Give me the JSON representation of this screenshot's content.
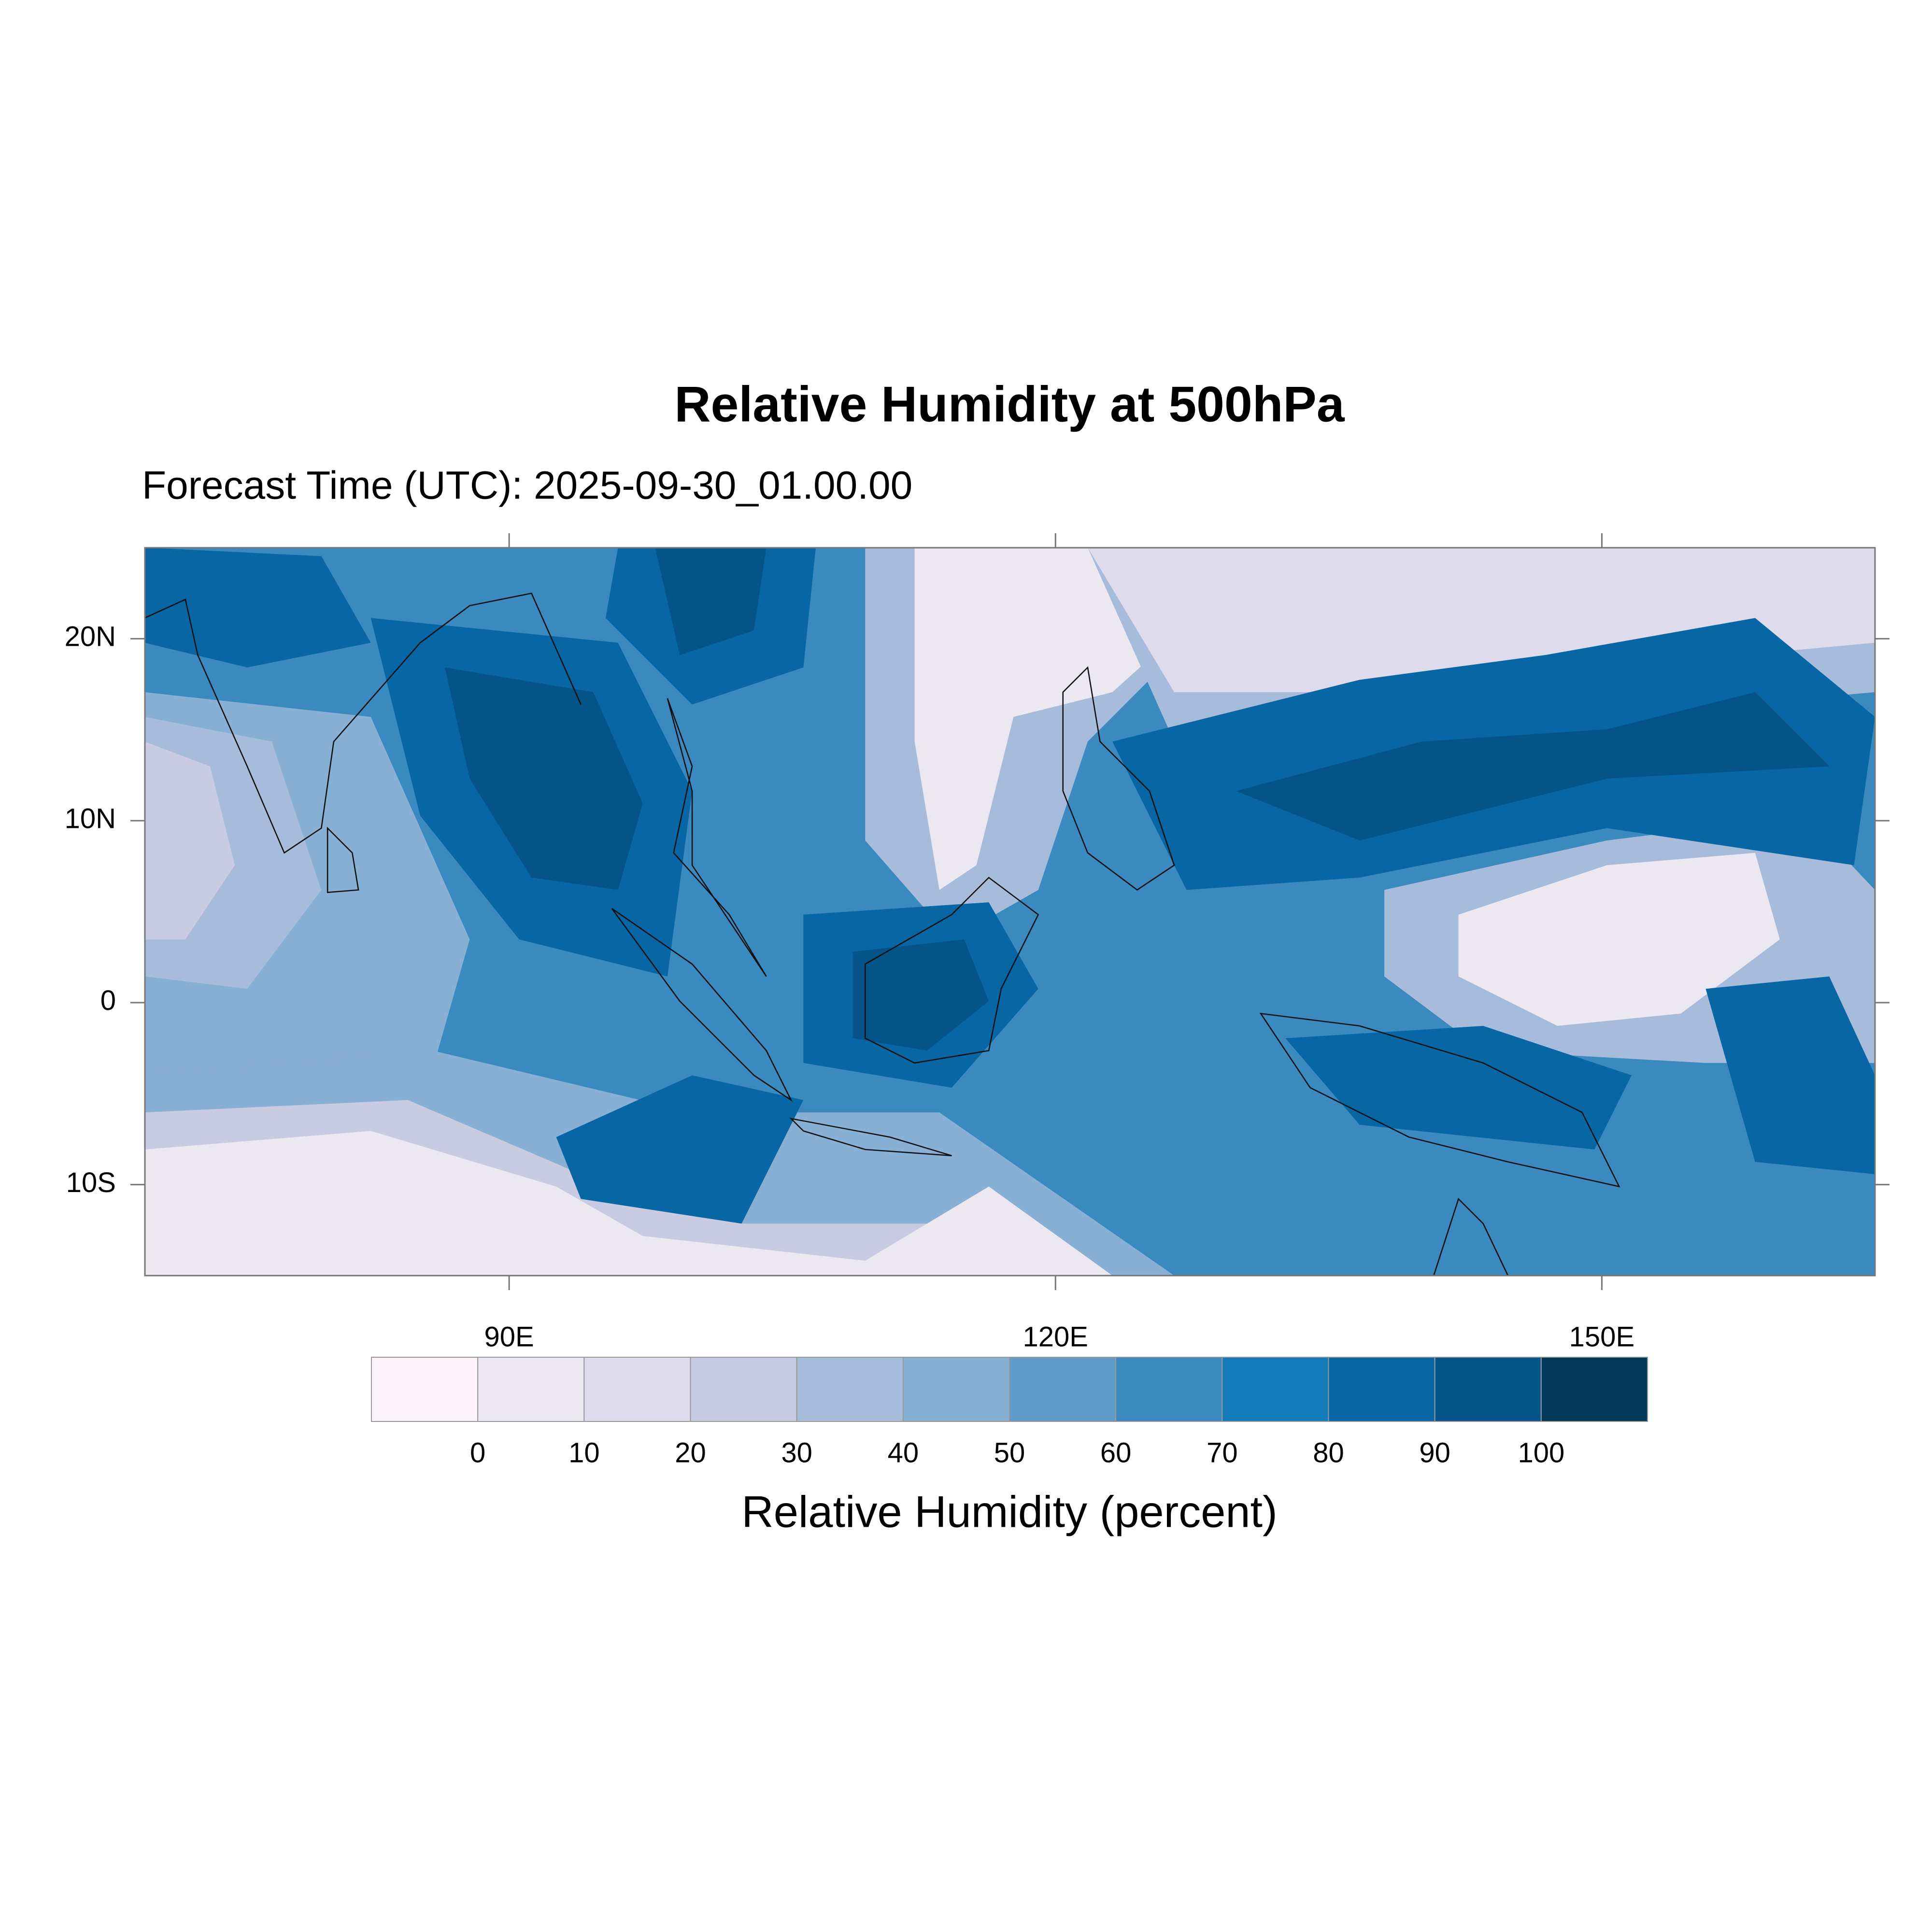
{
  "chart_data": {
    "type": "filled-contour",
    "title": "Relative Humidity at 500hPa",
    "subtitle": "Forecast Time (UTC): 2025-09-30_01.00.00",
    "xlim": [
      70,
      165
    ],
    "ylim": [
      -15,
      25
    ],
    "xticks": [
      {
        "value": 90,
        "label": "90E"
      },
      {
        "value": 120,
        "label": "120E"
      },
      {
        "value": 150,
        "label": "150E"
      }
    ],
    "yticks": [
      {
        "value": -10,
        "label": "10S"
      },
      0,
      {
        "value": 10,
        "label": "10N"
      },
      {
        "value": 20,
        "label": "20N"
      }
    ],
    "levels": [
      0,
      10,
      20,
      30,
      40,
      50,
      60,
      70,
      80,
      90,
      100
    ],
    "colors": [
      "#fcf4fa",
      "#ece8f2",
      "#dedbec",
      "#c9cbe3",
      "#a7bcdb",
      "#88afd4",
      "#5f9cc9",
      "#3a89bf",
      "#137bba",
      "#0766a3",
      "#04548a",
      "#023858"
    ],
    "colorbar_label": "Relative Humidity (percent)"
  }
}
